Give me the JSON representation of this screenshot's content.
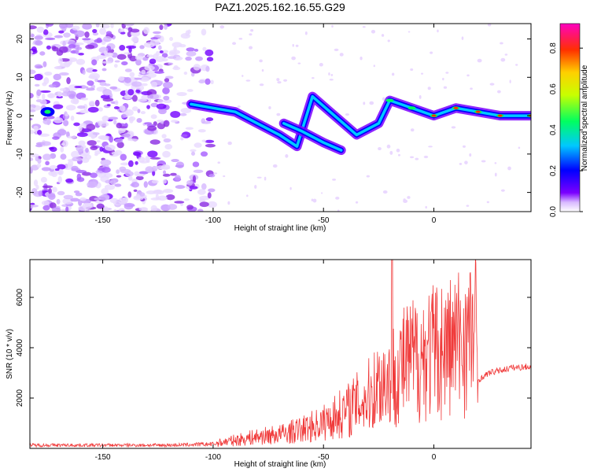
{
  "figure": {
    "title": "PAZ1.2025.162.16.55.G29"
  },
  "chart_data": [
    {
      "type": "heatmap",
      "xlabel": "Height of straight line (km)",
      "ylabel": "Frequency (Hz)",
      "xlim": [
        -183,
        44
      ],
      "ylim": [
        -25,
        24
      ],
      "xticks": [
        -150,
        -100,
        -50,
        0
      ],
      "yticks": [
        -20,
        -10,
        0,
        10,
        20
      ],
      "colorbar": {
        "label": "Normalized spectral amplitude",
        "range": [
          0.0,
          0.92
        ],
        "ticks": [
          "0.0",
          "0.2",
          "0.4",
          "0.6",
          "0.8"
        ],
        "colormap": [
          "#ffffff",
          "#7b00ff",
          "#0000ff",
          "#00c8ff",
          "#00ff60",
          "#c8ff00",
          "#ffd000",
          "#ff3000",
          "#ff00c0"
        ]
      },
      "ridge": [
        {
          "x": -110,
          "y": 3
        },
        {
          "x": -100,
          "y": 2
        },
        {
          "x": -90,
          "y": 1
        },
        {
          "x": -80,
          "y": -2
        },
        {
          "x": -70,
          "y": -5
        },
        {
          "x": -62,
          "y": -8
        },
        {
          "x": -55,
          "y": 5
        },
        {
          "x": -45,
          "y": 0
        },
        {
          "x": -35,
          "y": -5
        },
        {
          "x": -25,
          "y": -2
        },
        {
          "x": -20,
          "y": 4
        },
        {
          "x": -10,
          "y": 2
        },
        {
          "x": 0,
          "y": 0
        },
        {
          "x": 10,
          "y": 2
        },
        {
          "x": 20,
          "y": 1
        },
        {
          "x": 30,
          "y": 0
        },
        {
          "x": 44,
          "y": 0
        }
      ],
      "secondary_ridge": [
        {
          "x": -68,
          "y": -2
        },
        {
          "x": -60,
          "y": -4
        },
        {
          "x": -50,
          "y": -7
        },
        {
          "x": -42,
          "y": -9
        }
      ],
      "isolated_peak": {
        "x": -175,
        "y": 1
      }
    },
    {
      "type": "line",
      "xlabel": "Height of straight line (km)",
      "ylabel": "SNR (10 * v/v)",
      "xlim": [
        -183,
        44
      ],
      "ylim": [
        0,
        7500
      ],
      "xticks": [
        -150,
        -100,
        -50,
        0
      ],
      "yticks": [
        2000,
        4000,
        6000
      ],
      "series": [
        {
          "color": "#f03a3a",
          "envelope": [
            {
              "x": -183,
              "y": 150
            },
            {
              "x": -160,
              "y": 150
            },
            {
              "x": -140,
              "y": 150
            },
            {
              "x": -120,
              "y": 150
            },
            {
              "x": -100,
              "y": 200
            },
            {
              "x": -90,
              "y": 350
            },
            {
              "x": -80,
              "y": 500
            },
            {
              "x": -70,
              "y": 600
            },
            {
              "x": -60,
              "y": 800
            },
            {
              "x": -50,
              "y": 1100
            },
            {
              "x": -40,
              "y": 1600
            },
            {
              "x": -30,
              "y": 2200
            },
            {
              "x": -25,
              "y": 2800
            },
            {
              "x": -20,
              "y": 3000
            },
            {
              "x": -15,
              "y": 3500
            },
            {
              "x": -10,
              "y": 3800
            },
            {
              "x": -5,
              "y": 4000
            },
            {
              "x": 0,
              "y": 4200
            },
            {
              "x": 5,
              "y": 4300
            },
            {
              "x": 10,
              "y": 4500
            },
            {
              "x": 15,
              "y": 4800
            },
            {
              "x": 19,
              "y": 5000
            },
            {
              "x": 20,
              "y": 2700
            },
            {
              "x": 25,
              "y": 3000
            },
            {
              "x": 30,
              "y": 3100
            },
            {
              "x": 35,
              "y": 3200
            },
            {
              "x": 44,
              "y": 3250
            }
          ],
          "peak": {
            "x": -19,
            "y": 7500
          }
        }
      ]
    }
  ]
}
